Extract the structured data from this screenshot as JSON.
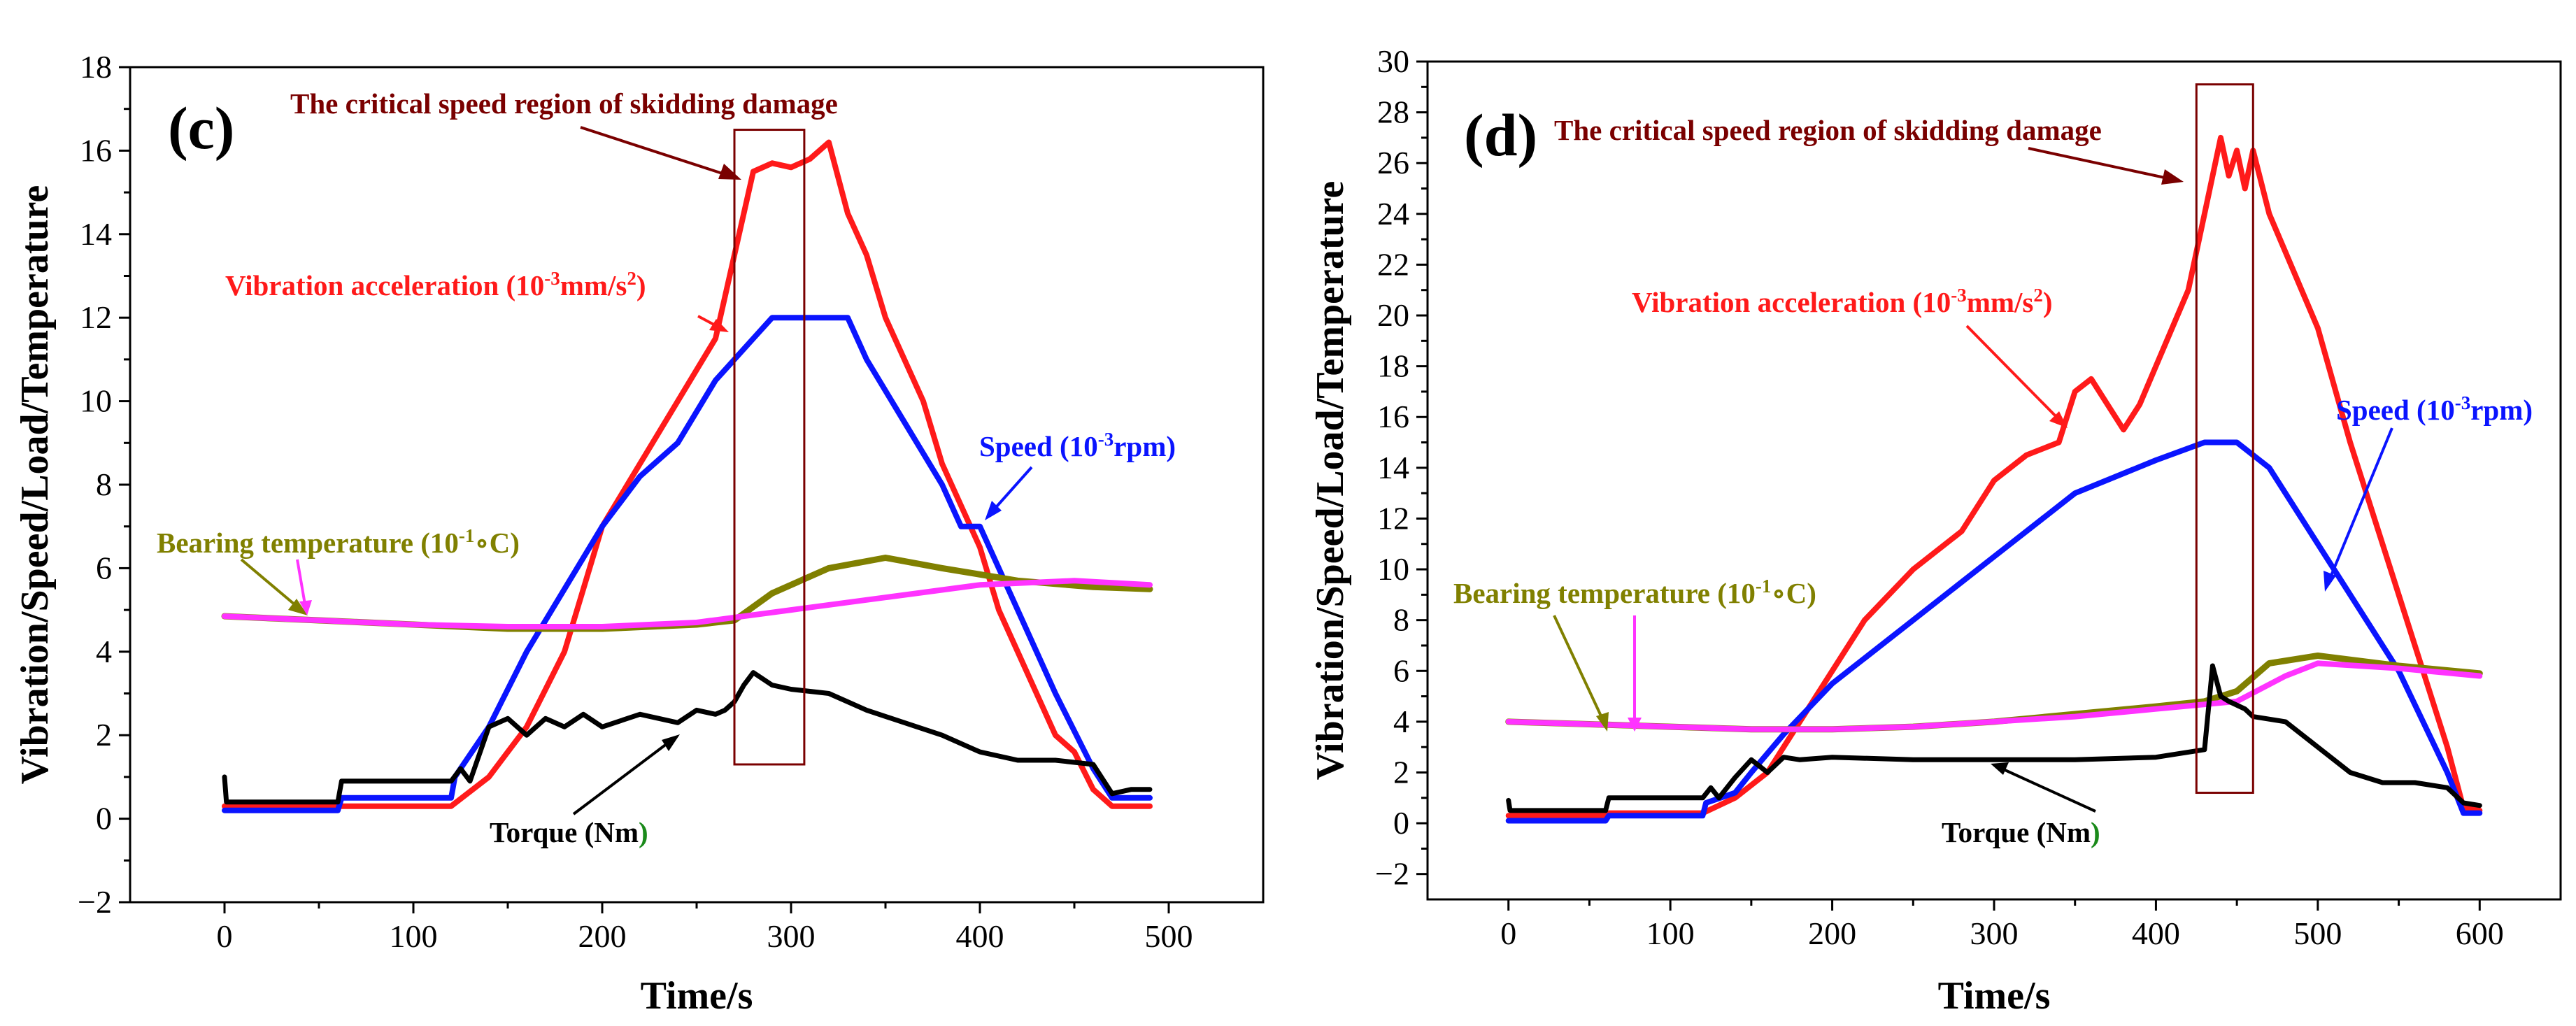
{
  "chart_data": [
    {
      "panel_label": "(c)",
      "type": "line",
      "xlabel": "Time/s",
      "ylabel": "Vibration/Speed/Load/Temperature",
      "xlim": [
        -50,
        550
      ],
      "ylim": [
        -2,
        18
      ],
      "xticks": [
        "0",
        "100",
        "200",
        "300",
        "400",
        "500"
      ],
      "yticks": [
        "−2",
        "0",
        "2",
        "4",
        "6",
        "8",
        "10",
        "12",
        "14",
        "16",
        "18"
      ],
      "region": {
        "label": "The critical speed region of skidding damage",
        "x": [
          270,
          307
        ],
        "y": [
          1.3,
          16.5
        ]
      },
      "annotations": {
        "vibration": {
          "text": "Vibration acceleration (10",
          "sup1": "-3",
          "mid": "mm/s",
          "sup2": "2",
          "end": ")"
        },
        "speed": {
          "text": "Speed (10",
          "sup": "-3",
          "end": "rpm)"
        },
        "bearing": {
          "text": "Bearing temperature (10",
          "sup": "-1",
          "end": "∘C)"
        },
        "torque": {
          "text": "Torque (Nm",
          "end": ")"
        }
      },
      "series": [
        {
          "name": "Vibration acceleration",
          "color": "#ff1a1a",
          "x": [
            0,
            60,
            62,
            120,
            140,
            160,
            180,
            190,
            200,
            220,
            240,
            260,
            270,
            280,
            290,
            300,
            310,
            320,
            330,
            340,
            350,
            360,
            370,
            380,
            390,
            400,
            410,
            420,
            430,
            440,
            450,
            460,
            470,
            480,
            490
          ],
          "y": [
            0.3,
            0.3,
            0.3,
            0.3,
            1.0,
            2.2,
            4.0,
            5.5,
            7.0,
            8.5,
            10.0,
            11.5,
            13.5,
            15.5,
            15.7,
            15.6,
            15.8,
            16.2,
            14.5,
            13.5,
            12.0,
            11.0,
            10.0,
            8.5,
            7.5,
            6.5,
            5.0,
            4.0,
            3.0,
            2.0,
            1.6,
            0.7,
            0.3,
            0.3,
            0.3
          ]
        },
        {
          "name": "Speed",
          "color": "#0a14ff",
          "x": [
            0,
            60,
            62,
            120,
            122,
            140,
            160,
            180,
            200,
            220,
            240,
            260,
            270,
            280,
            290,
            330,
            340,
            360,
            380,
            390,
            400,
            410,
            420,
            440,
            460,
            470,
            480,
            490
          ],
          "y": [
            0.2,
            0.2,
            0.5,
            0.5,
            1.0,
            2.2,
            4.0,
            5.5,
            7.0,
            8.2,
            9.0,
            10.5,
            11.0,
            11.5,
            12.0,
            12.0,
            11.0,
            9.5,
            8.0,
            7.0,
            7.0,
            6.0,
            5.0,
            3.0,
            1.2,
            0.5,
            0.5,
            0.5
          ]
        },
        {
          "name": "Bearing temperature",
          "color": "#808000",
          "x": [
            0,
            50,
            100,
            150,
            200,
            250,
            270,
            290,
            320,
            350,
            380,
            420,
            460,
            490
          ],
          "y": [
            4.85,
            4.75,
            4.65,
            4.55,
            4.55,
            4.65,
            4.75,
            5.4,
            6.0,
            6.25,
            6.0,
            5.7,
            5.55,
            5.5
          ]
        },
        {
          "name": "Load",
          "color": "#ff33ff",
          "x": [
            0,
            50,
            100,
            150,
            200,
            250,
            300,
            350,
            400,
            450,
            490
          ],
          "y": [
            4.85,
            4.75,
            4.65,
            4.6,
            4.6,
            4.7,
            5.0,
            5.3,
            5.6,
            5.7,
            5.6
          ]
        },
        {
          "name": "Torque",
          "color": "#000000",
          "x": [
            0,
            1,
            60,
            62,
            120,
            125,
            130,
            140,
            150,
            160,
            170,
            180,
            190,
            200,
            220,
            240,
            250,
            260,
            265,
            270,
            275,
            280,
            290,
            300,
            320,
            340,
            360,
            380,
            400,
            420,
            440,
            460,
            470,
            480,
            490
          ],
          "y": [
            1.0,
            0.4,
            0.4,
            0.9,
            0.9,
            1.2,
            0.9,
            2.2,
            2.4,
            2.0,
            2.4,
            2.2,
            2.5,
            2.2,
            2.5,
            2.3,
            2.6,
            2.5,
            2.6,
            2.8,
            3.2,
            3.5,
            3.2,
            3.1,
            3.0,
            2.6,
            2.3,
            2.0,
            1.6,
            1.4,
            1.4,
            1.3,
            0.6,
            0.7,
            0.7
          ]
        }
      ]
    },
    {
      "panel_label": "(d)",
      "type": "line",
      "xlabel": "Time/s",
      "ylabel": "Vibration/Speed/Load/Temperature",
      "xlim": [
        -50,
        650
      ],
      "ylim": [
        -3,
        30
      ],
      "xticks": [
        "0",
        "100",
        "200",
        "300",
        "400",
        "500",
        "600"
      ],
      "yticks": [
        "−2",
        "0",
        "2",
        "4",
        "6",
        "8",
        "10",
        "12",
        "14",
        "16",
        "18",
        "20",
        "22",
        "24",
        "26",
        "28",
        "30"
      ],
      "region": {
        "label": "The critical speed region of skidding damage",
        "x": [
          425,
          460
        ],
        "y": [
          1.2,
          29.1
        ]
      },
      "annotations": {
        "vibration": {
          "text": "Vibration acceleration (10",
          "sup1": "-3",
          "mid": "mm/s",
          "sup2": "2",
          "end": ")"
        },
        "speed": {
          "text": "Speed (10",
          "sup": "-3",
          "end": "rpm)"
        },
        "bearing": {
          "text": "Bearing temperature (10",
          "sup": "-1",
          "end": "∘C)"
        },
        "torque": {
          "text": "Torque (Nm",
          "end": ")"
        }
      },
      "series": [
        {
          "name": "Vibration acceleration",
          "color": "#ff1a1a",
          "x": [
            0,
            60,
            62,
            120,
            140,
            160,
            180,
            200,
            220,
            250,
            280,
            300,
            320,
            340,
            350,
            360,
            370,
            380,
            390,
            400,
            420,
            430,
            440,
            445,
            450,
            455,
            460,
            470,
            480,
            490,
            500,
            520,
            540,
            560,
            580,
            590,
            600
          ],
          "y": [
            0.3,
            0.3,
            0.4,
            0.4,
            1.0,
            2.0,
            4.0,
            6.0,
            8.0,
            10.0,
            11.5,
            13.5,
            14.5,
            15.0,
            17.0,
            17.5,
            16.5,
            15.5,
            16.5,
            18.0,
            21.0,
            24.0,
            27.0,
            25.5,
            26.5,
            25.0,
            26.5,
            24.0,
            22.5,
            21.0,
            19.5,
            15.0,
            11.0,
            7.0,
            3.0,
            0.6,
            0.5
          ]
        },
        {
          "name": "Speed",
          "color": "#0a14ff",
          "x": [
            0,
            60,
            62,
            120,
            122,
            140,
            150,
            170,
            200,
            250,
            300,
            350,
            400,
            430,
            450,
            470,
            500,
            550,
            580,
            590,
            600
          ],
          "y": [
            0.1,
            0.1,
            0.3,
            0.3,
            0.8,
            1.2,
            2.0,
            3.5,
            5.5,
            8.0,
            10.5,
            13.0,
            14.3,
            15.0,
            15.0,
            14.0,
            11.0,
            6.0,
            2.0,
            0.4,
            0.4
          ]
        },
        {
          "name": "Bearing temperature",
          "color": "#808000",
          "x": [
            0,
            50,
            100,
            150,
            200,
            250,
            300,
            350,
            400,
            430,
            450,
            470,
            500,
            550,
            600
          ],
          "y": [
            4.0,
            3.9,
            3.8,
            3.7,
            3.7,
            3.8,
            4.0,
            4.3,
            4.6,
            4.8,
            5.2,
            6.3,
            6.6,
            6.2,
            5.9
          ]
        },
        {
          "name": "Load",
          "color": "#ff33ff",
          "x": [
            0,
            50,
            100,
            150,
            200,
            250,
            300,
            350,
            400,
            450,
            480,
            500,
            550,
            600
          ],
          "y": [
            4.0,
            3.9,
            3.8,
            3.7,
            3.7,
            3.8,
            4.0,
            4.2,
            4.5,
            4.8,
            5.8,
            6.3,
            6.1,
            5.8
          ]
        },
        {
          "name": "Torque",
          "color": "#000000",
          "x": [
            0,
            1,
            60,
            62,
            120,
            125,
            130,
            140,
            150,
            160,
            170,
            180,
            200,
            250,
            300,
            350,
            400,
            430,
            435,
            440,
            445,
            455,
            460,
            480,
            500,
            520,
            540,
            560,
            580,
            590,
            600
          ],
          "y": [
            0.9,
            0.5,
            0.5,
            1.0,
            1.0,
            1.4,
            1.0,
            1.8,
            2.5,
            2.0,
            2.6,
            2.5,
            2.6,
            2.5,
            2.5,
            2.5,
            2.6,
            2.9,
            6.2,
            5.0,
            4.8,
            4.5,
            4.2,
            4.0,
            3.0,
            2.0,
            1.6,
            1.6,
            1.4,
            0.8,
            0.7
          ]
        }
      ]
    }
  ]
}
